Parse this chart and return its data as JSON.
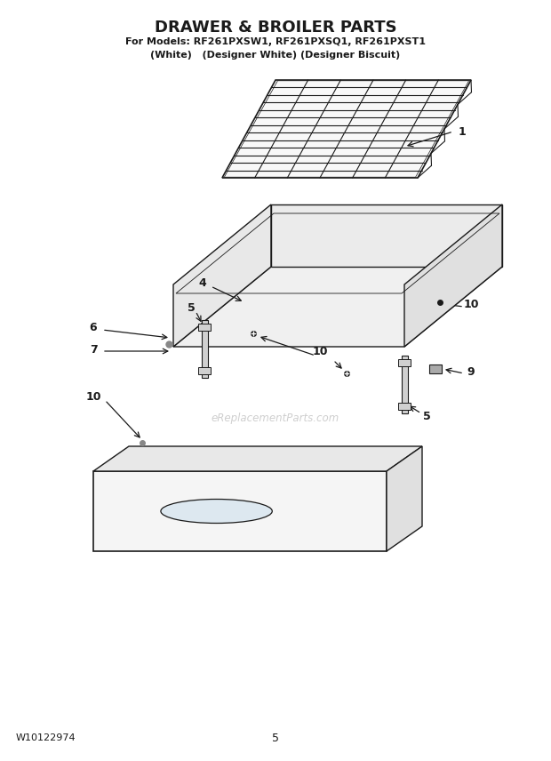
{
  "title": "DRAWER & BROILER PARTS",
  "subtitle1": "For Models: RF261PXSW1, RF261PXSQ1, RF261PXST1",
  "subtitle2": "(White)   (Designer White) (Designer Biscuit)",
  "footer_left": "W10122974",
  "footer_center": "5",
  "bg_color": "#ffffff",
  "line_color": "#1a1a1a",
  "text_color": "#1a1a1a",
  "watermark": "eReplacementParts.com"
}
